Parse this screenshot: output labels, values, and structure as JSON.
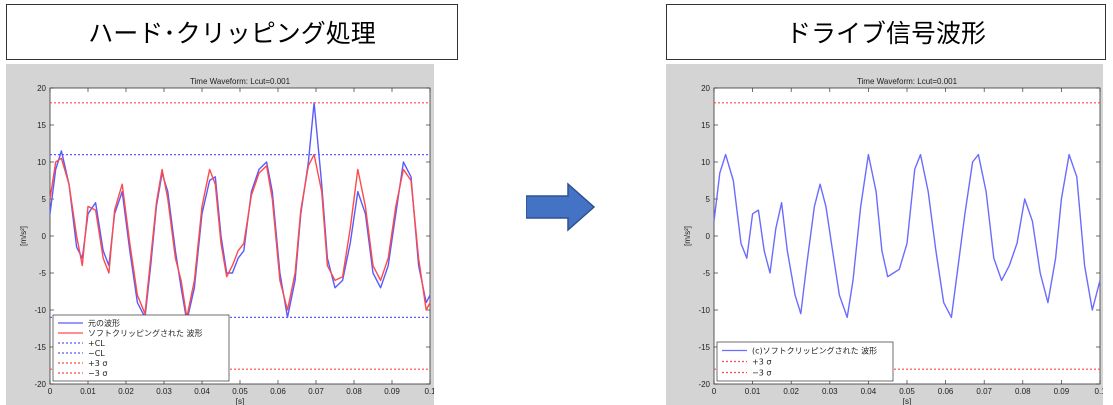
{
  "left": {
    "heading": "ハード･クリッピング処理",
    "chart_data": {
      "type": "line",
      "title": "Time Waveform: Lcut=0.001",
      "xlabel": "[s]",
      "ylabel": "[m/s²]",
      "xlim": [
        0,
        0.1
      ],
      "ylim": [
        -20,
        20
      ],
      "x_ticks": [
        "0",
        "0.01",
        "0.02",
        "0.03",
        "0.04",
        "0.05",
        "0.06",
        "0.07",
        "0.08",
        "0.09",
        "0.1"
      ],
      "y_ticks": [
        "-20",
        "-15",
        "-10",
        "-5",
        "0",
        "5",
        "10",
        "15",
        "20"
      ],
      "grid": false,
      "legend_position": "bottom-left",
      "series": [
        {
          "name": "元の波形",
          "color": "#5a5aff",
          "style": "solid",
          "points": [
            [
              0,
              3
            ],
            [
              0.0015,
              9
            ],
            [
              0.003,
              11.5
            ],
            [
              0.005,
              7
            ],
            [
              0.007,
              -1.5
            ],
            [
              0.0085,
              -3
            ],
            [
              0.01,
              3
            ],
            [
              0.012,
              4.5
            ],
            [
              0.014,
              -2
            ],
            [
              0.0155,
              -4
            ],
            [
              0.017,
              3
            ],
            [
              0.019,
              6
            ],
            [
              0.021,
              -2
            ],
            [
              0.023,
              -9
            ],
            [
              0.025,
              -11
            ],
            [
              0.0265,
              -4
            ],
            [
              0.028,
              4
            ],
            [
              0.0295,
              8.5
            ],
            [
              0.031,
              6
            ],
            [
              0.033,
              -2
            ],
            [
              0.0345,
              -7
            ],
            [
              0.036,
              -11.5
            ],
            [
              0.038,
              -7
            ],
            [
              0.04,
              3
            ],
            [
              0.042,
              7.5
            ],
            [
              0.0435,
              8
            ],
            [
              0.045,
              0
            ],
            [
              0.0465,
              -5
            ],
            [
              0.048,
              -5
            ],
            [
              0.0495,
              -3
            ],
            [
              0.051,
              -2
            ],
            [
              0.053,
              6
            ],
            [
              0.055,
              9
            ],
            [
              0.057,
              10
            ],
            [
              0.0585,
              6
            ],
            [
              0.0605,
              -5
            ],
            [
              0.0625,
              -11
            ],
            [
              0.0645,
              -6
            ],
            [
              0.066,
              3
            ],
            [
              0.068,
              10
            ],
            [
              0.0695,
              18
            ],
            [
              0.0715,
              7
            ],
            [
              0.073,
              -3
            ],
            [
              0.075,
              -7
            ],
            [
              0.077,
              -6
            ],
            [
              0.079,
              -1
            ],
            [
              0.081,
              6
            ],
            [
              0.083,
              3
            ],
            [
              0.085,
              -5
            ],
            [
              0.087,
              -7
            ],
            [
              0.089,
              -4
            ],
            [
              0.091,
              3
            ],
            [
              0.093,
              10
            ],
            [
              0.095,
              8
            ],
            [
              0.097,
              -4
            ],
            [
              0.099,
              -9
            ],
            [
              0.1,
              -8
            ]
          ]
        },
        {
          "name": "ソフトクリッピングされた 波形",
          "color": "#ff4a4a",
          "style": "solid",
          "points": [
            [
              0,
              5
            ],
            [
              0.0015,
              10
            ],
            [
              0.003,
              10.5
            ],
            [
              0.005,
              7
            ],
            [
              0.007,
              0
            ],
            [
              0.0085,
              -4
            ],
            [
              0.01,
              4
            ],
            [
              0.012,
              3.5
            ],
            [
              0.014,
              -3
            ],
            [
              0.0155,
              -5
            ],
            [
              0.017,
              3.5
            ],
            [
              0.019,
              7
            ],
            [
              0.021,
              -1
            ],
            [
              0.023,
              -8
            ],
            [
              0.025,
              -10.5
            ],
            [
              0.0265,
              -3
            ],
            [
              0.028,
              4.5
            ],
            [
              0.0295,
              9
            ],
            [
              0.031,
              5
            ],
            [
              0.033,
              -3
            ],
            [
              0.0345,
              -6
            ],
            [
              0.036,
              -11
            ],
            [
              0.038,
              -6
            ],
            [
              0.04,
              4
            ],
            [
              0.042,
              9
            ],
            [
              0.0435,
              7
            ],
            [
              0.045,
              -1
            ],
            [
              0.0465,
              -5.5
            ],
            [
              0.048,
              -4
            ],
            [
              0.0495,
              -2
            ],
            [
              0.051,
              -1
            ],
            [
              0.053,
              5.5
            ],
            [
              0.055,
              8.5
            ],
            [
              0.057,
              9.5
            ],
            [
              0.0585,
              5
            ],
            [
              0.0605,
              -6
            ],
            [
              0.0625,
              -10
            ],
            [
              0.0645,
              -5
            ],
            [
              0.066,
              3.5
            ],
            [
              0.068,
              9.5
            ],
            [
              0.0695,
              11
            ],
            [
              0.0715,
              6
            ],
            [
              0.073,
              -4
            ],
            [
              0.075,
              -6
            ],
            [
              0.077,
              -5.5
            ],
            [
              0.079,
              1
            ],
            [
              0.081,
              9
            ],
            [
              0.083,
              4
            ],
            [
              0.085,
              -4
            ],
            [
              0.087,
              -6
            ],
            [
              0.089,
              -3
            ],
            [
              0.091,
              4
            ],
            [
              0.093,
              9
            ],
            [
              0.095,
              7.5
            ],
            [
              0.097,
              -3
            ],
            [
              0.099,
              -10
            ],
            [
              0.1,
              -9
            ]
          ]
        },
        {
          "name": "+CL",
          "color": "#5a5aff",
          "style": "dotted",
          "constant": 11
        },
        {
          "name": "−CL",
          "color": "#5a5aff",
          "style": "dotted",
          "constant": -11
        },
        {
          "name": "+3 σ",
          "color": "#ff4a4a",
          "style": "dotted",
          "constant": 18
        },
        {
          "name": "−3 σ",
          "color": "#ff4a4a",
          "style": "dotted",
          "constant": -18
        }
      ]
    }
  },
  "right": {
    "heading": "ドライブ信号波形",
    "chart_data": {
      "type": "line",
      "title": "Time Waveform: Lcut=0.001",
      "xlabel": "[s]",
      "ylabel": "[m/s²]",
      "xlim": [
        0,
        0.1
      ],
      "ylim": [
        -20,
        20
      ],
      "x_ticks": [
        "0",
        "0.01",
        "0.02",
        "0.03",
        "0.04",
        "0.05",
        "0.06",
        "0.07",
        "0.08",
        "0.09",
        "0.1"
      ],
      "y_ticks": [
        "-20",
        "-15",
        "-10",
        "-5",
        "0",
        "5",
        "10",
        "15",
        "20"
      ],
      "grid": false,
      "legend_position": "bottom-left",
      "series": [
        {
          "name": "(c)ソフトクリッピングされた 波形",
          "color": "#6b6bff",
          "style": "solid",
          "points": [
            [
              0,
              2
            ],
            [
              0.0015,
              8.5
            ],
            [
              0.003,
              11
            ],
            [
              0.005,
              7.5
            ],
            [
              0.007,
              -1
            ],
            [
              0.0085,
              -3
            ],
            [
              0.01,
              3
            ],
            [
              0.0115,
              3.5
            ],
            [
              0.013,
              -2
            ],
            [
              0.0145,
              -5
            ],
            [
              0.016,
              1
            ],
            [
              0.0175,
              4.5
            ],
            [
              0.019,
              -2
            ],
            [
              0.021,
              -8
            ],
            [
              0.0225,
              -10.5
            ],
            [
              0.024,
              -4
            ],
            [
              0.026,
              4
            ],
            [
              0.0275,
              7
            ],
            [
              0.029,
              4
            ],
            [
              0.031,
              -3
            ],
            [
              0.0325,
              -8
            ],
            [
              0.0345,
              -11
            ],
            [
              0.036,
              -6
            ],
            [
              0.038,
              4
            ],
            [
              0.04,
              11
            ],
            [
              0.042,
              6
            ],
            [
              0.0435,
              -2
            ],
            [
              0.045,
              -5.5
            ],
            [
              0.0465,
              -5
            ],
            [
              0.048,
              -4.5
            ],
            [
              0.05,
              -1
            ],
            [
              0.052,
              9
            ],
            [
              0.0535,
              11
            ],
            [
              0.0555,
              6
            ],
            [
              0.0575,
              -2
            ],
            [
              0.0595,
              -9
            ],
            [
              0.0615,
              -11
            ],
            [
              0.063,
              -5
            ],
            [
              0.065,
              3
            ],
            [
              0.067,
              10
            ],
            [
              0.0685,
              11
            ],
            [
              0.0705,
              6
            ],
            [
              0.0725,
              -3
            ],
            [
              0.0745,
              -6
            ],
            [
              0.0765,
              -4
            ],
            [
              0.0785,
              -1
            ],
            [
              0.0805,
              5
            ],
            [
              0.0825,
              2
            ],
            [
              0.0845,
              -5
            ],
            [
              0.0865,
              -9
            ],
            [
              0.0885,
              -3
            ],
            [
              0.09,
              5
            ],
            [
              0.092,
              11
            ],
            [
              0.094,
              8
            ],
            [
              0.096,
              -4
            ],
            [
              0.098,
              -10
            ],
            [
              0.1,
              -6
            ]
          ]
        },
        {
          "name": "+3 σ",
          "color": "#ff4a4a",
          "style": "dotted",
          "constant": 18
        },
        {
          "name": "−3 σ",
          "color": "#ff4a4a",
          "style": "dotted",
          "constant": -18
        }
      ]
    }
  },
  "arrow": {
    "color": "#4472c4"
  }
}
